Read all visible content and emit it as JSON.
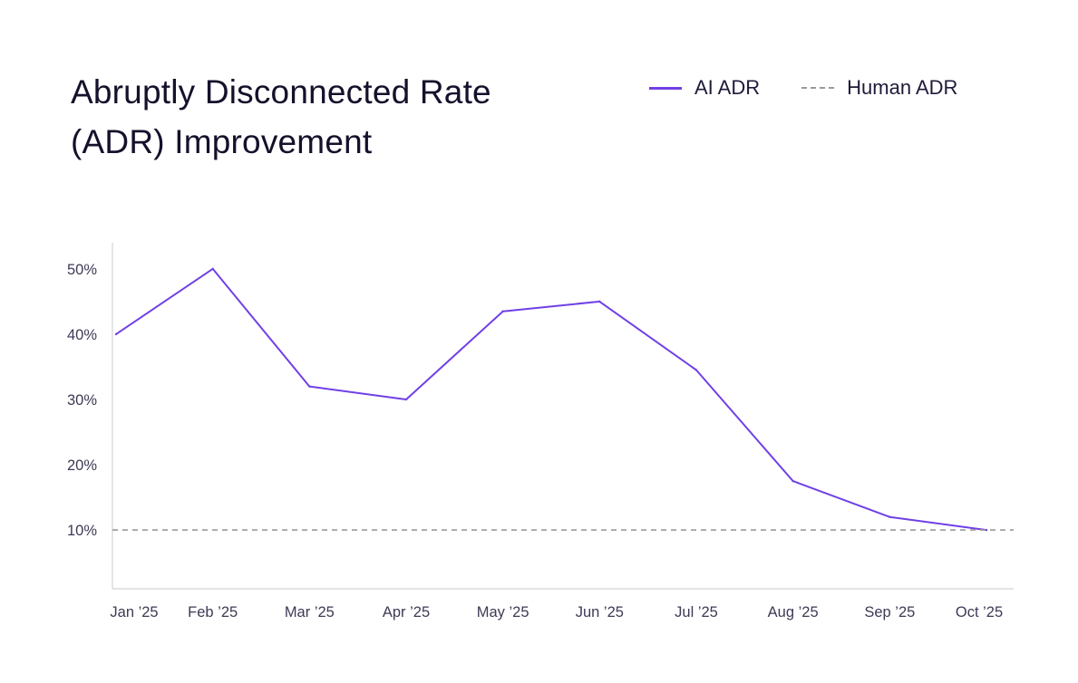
{
  "chart_title": "Abruptly Disconnected Rate (ADR) Improvement",
  "legend": [
    {
      "label": "AI ADR",
      "style": "solid",
      "color": "#7040e6"
    },
    {
      "label": "Human ADR",
      "style": "dashed",
      "color": "#9a9a9f"
    }
  ],
  "chart_data": {
    "type": "line",
    "title": "Abruptly Disconnected Rate (ADR) Improvement",
    "xlabel": "",
    "ylabel": "",
    "categories": [
      "Jan ’25",
      "Feb ’25",
      "Mar ’25",
      "Apr ’25",
      "May ’25",
      "Jun ’25",
      "Jul ’25",
      "Aug ’25",
      "Sep ’25",
      "Oct ’25"
    ],
    "series": [
      {
        "name": "AI ADR",
        "values": [
          40,
          50,
          32,
          30,
          43.5,
          45,
          34.5,
          17.5,
          12,
          10
        ],
        "color": "#7040e6",
        "style": "solid"
      },
      {
        "name": "Human ADR",
        "values": [
          10,
          10,
          10,
          10,
          10,
          10,
          10,
          10,
          10,
          10
        ],
        "color": "#9a9a9f",
        "style": "dashed"
      }
    ],
    "yticks": [
      10,
      20,
      30,
      40,
      50
    ],
    "ytick_labels": [
      "10%",
      "20%",
      "30%",
      "40%",
      "50%"
    ],
    "ylim": [
      1,
      54
    ],
    "grid": false,
    "legend_position": "top-right"
  }
}
